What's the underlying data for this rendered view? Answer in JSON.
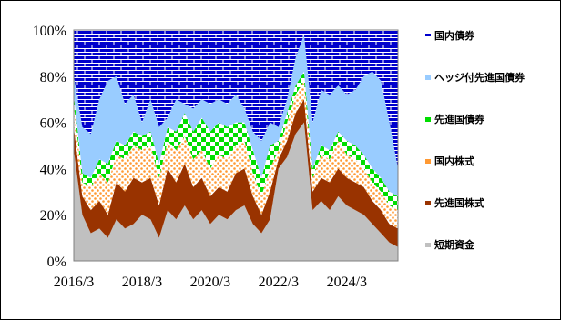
{
  "chart_data": {
    "type": "area",
    "stacked": true,
    "normalized": true,
    "ylim": [
      0,
      100
    ],
    "y_ticks": [
      "0%",
      "20%",
      "40%",
      "60%",
      "80%",
      "100%"
    ],
    "x_ticks": [
      "2016/3",
      "2018/3",
      "2020/3",
      "2022/3",
      "2024/3"
    ],
    "x_start": "2016/3",
    "x_end": "2025/9",
    "legend_position": "right",
    "grid": false,
    "series": [
      {
        "name": "短期資金",
        "color": "#c0c0c0"
      },
      {
        "name": "先進国株式",
        "color": "#993300"
      },
      {
        "name": "国内株式",
        "color": "#ff9933",
        "pattern": "dots"
      },
      {
        "name": "先進国債券",
        "color": "#00dd00",
        "pattern": "checker"
      },
      {
        "name": "ヘッジ付先進国債券",
        "color": "#99ccff"
      },
      {
        "name": "国内債券",
        "color": "#0000cc",
        "pattern": "brick"
      }
    ],
    "bounds": {
      "points": [
        [
          "2016/3",
          48,
          58,
          68,
          72,
          80
        ],
        [
          "2016/6",
          20,
          28,
          34,
          38,
          58
        ],
        [
          "2016/9",
          12,
          22,
          32,
          36,
          55
        ],
        [
          "2016/12",
          14,
          26,
          38,
          44,
          70
        ],
        [
          "2017/3",
          10,
          20,
          34,
          42,
          78
        ],
        [
          "2017/6",
          18,
          34,
          46,
          52,
          80
        ],
        [
          "2017/9",
          14,
          30,
          44,
          50,
          68
        ],
        [
          "2017/12",
          16,
          36,
          50,
          56,
          72
        ],
        [
          "2018/3",
          20,
          34,
          48,
          54,
          60
        ],
        [
          "2018/6",
          18,
          36,
          50,
          56,
          70
        ],
        [
          "2018/9",
          10,
          24,
          36,
          42,
          58
        ],
        [
          "2018/12",
          22,
          40,
          52,
          58,
          62
        ],
        [
          "2019/3",
          18,
          34,
          48,
          56,
          70
        ],
        [
          "2019/6",
          24,
          42,
          54,
          64,
          68
        ],
        [
          "2019/9",
          18,
          32,
          44,
          56,
          66
        ],
        [
          "2019/12",
          22,
          36,
          48,
          62,
          70
        ],
        [
          "2020/3",
          16,
          28,
          40,
          56,
          68
        ],
        [
          "2020/6",
          20,
          32,
          46,
          60,
          70
        ],
        [
          "2020/9",
          18,
          30,
          44,
          58,
          68
        ],
        [
          "2020/12",
          22,
          38,
          50,
          60,
          72
        ],
        [
          "2021/3",
          24,
          40,
          52,
          60,
          66
        ],
        [
          "2021/6",
          16,
          28,
          38,
          48,
          56
        ],
        [
          "2021/9",
          12,
          20,
          28,
          36,
          52
        ],
        [
          "2021/12",
          18,
          30,
          40,
          50,
          60
        ],
        [
          "2022/3",
          40,
          44,
          48,
          52,
          58
        ],
        [
          "2022/6",
          45,
          52,
          60,
          64,
          70
        ],
        [
          "2022/9",
          55,
          64,
          72,
          76,
          88
        ],
        [
          "2022/12",
          60,
          70,
          78,
          82,
          98
        ],
        [
          "2023/3",
          22,
          30,
          36,
          40,
          60
        ],
        [
          "2023/6",
          26,
          36,
          46,
          50,
          74
        ],
        [
          "2023/9",
          22,
          34,
          44,
          48,
          72
        ],
        [
          "2023/12",
          28,
          40,
          52,
          56,
          76
        ],
        [
          "2024/3",
          24,
          36,
          46,
          52,
          72
        ],
        [
          "2024/6",
          22,
          34,
          44,
          50,
          74
        ],
        [
          "2024/9",
          20,
          32,
          40,
          46,
          80
        ],
        [
          "2024/12",
          16,
          26,
          34,
          40,
          82
        ],
        [
          "2025/3",
          12,
          22,
          30,
          36,
          78
        ],
        [
          "2025/6",
          8,
          16,
          24,
          30,
          60
        ],
        [
          "2025/9",
          6,
          14,
          22,
          28,
          40
        ]
      ]
    }
  },
  "colors": {
    "frame_border": "#000000",
    "brick_line": "#ffffff"
  }
}
